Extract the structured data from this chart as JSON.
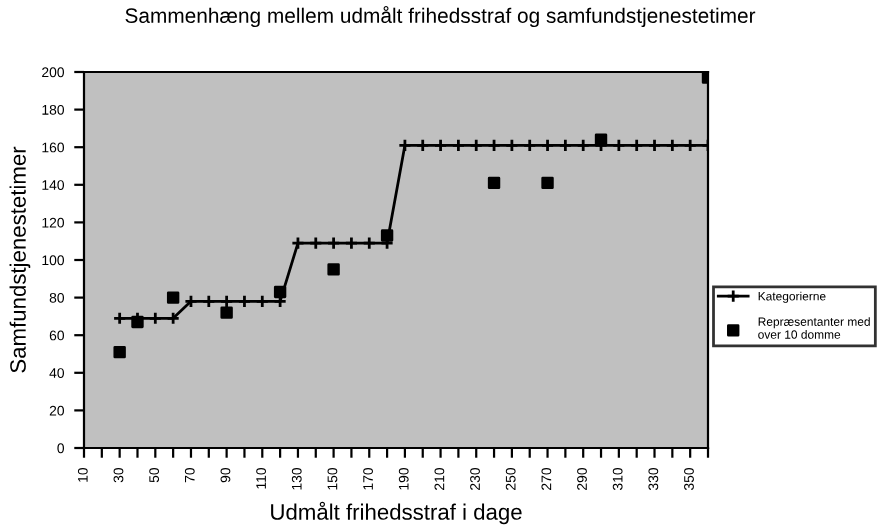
{
  "chart_data": {
    "type": "line",
    "title": "Sammenhæng mellem udmålt frihedsstraf og samfundstjenestetimer",
    "xlabel": "Udmålt frihedsstraf i dage",
    "ylabel": "Samfundstjenestetimer",
    "xlim": [
      10,
      360
    ],
    "xticks": [
      10,
      {
        "value": 20,
        "label": null
      },
      30,
      {
        "value": 40,
        "label": null
      },
      50,
      {
        "value": 60,
        "label": null
      },
      70,
      {
        "value": 80,
        "label": null
      },
      90,
      {
        "value": 100,
        "label": null
      },
      110,
      {
        "value": 120,
        "label": null
      },
      130,
      {
        "value": 140,
        "label": null
      },
      150,
      {
        "value": 160,
        "label": null
      },
      170,
      {
        "value": 180,
        "label": null
      },
      190,
      {
        "value": 200,
        "label": null
      },
      210,
      {
        "value": 220,
        "label": null
      },
      230,
      {
        "value": 240,
        "label": null
      },
      250,
      {
        "value": 260,
        "label": null
      },
      270,
      {
        "value": 280,
        "label": null
      },
      290,
      {
        "value": 300,
        "label": null
      },
      310,
      {
        "value": 320,
        "label": null
      },
      330,
      {
        "value": 340,
        "label": null
      },
      350,
      {
        "value": 360,
        "label": null
      }
    ],
    "ylim": [
      0,
      200
    ],
    "yticks": [
      0,
      20,
      40,
      60,
      80,
      100,
      120,
      140,
      160,
      180,
      200
    ],
    "grid": false,
    "legend": "right",
    "series": [
      {
        "name": "Kategorierne",
        "color": "#000000",
        "marker": "cross",
        "line_style": "solid",
        "x": [
          30,
          40,
          50,
          60,
          70,
          80,
          90,
          100,
          110,
          120,
          130,
          140,
          150,
          160,
          170,
          180,
          190,
          200,
          210,
          220,
          230,
          240,
          250,
          260,
          270,
          280,
          290,
          300,
          310,
          320,
          330,
          340,
          350,
          360
        ],
        "values": [
          69,
          69,
          69,
          69,
          78,
          78,
          78,
          78,
          78,
          78,
          109,
          109,
          109,
          109,
          109,
          109,
          161,
          161,
          161,
          161,
          161,
          161,
          161,
          161,
          161,
          161,
          161,
          161,
          161,
          161,
          161,
          161,
          161,
          161
        ]
      },
      {
        "name": "Repræsentanter med over 10 domme",
        "type": "scatter",
        "color": "#000000",
        "marker": "square",
        "x": [
          30,
          40,
          60,
          90,
          120,
          150,
          180,
          240,
          270,
          300,
          360
        ],
        "values": [
          51,
          67,
          80,
          72,
          83,
          95,
          113,
          141,
          141,
          164,
          197
        ]
      }
    ]
  }
}
